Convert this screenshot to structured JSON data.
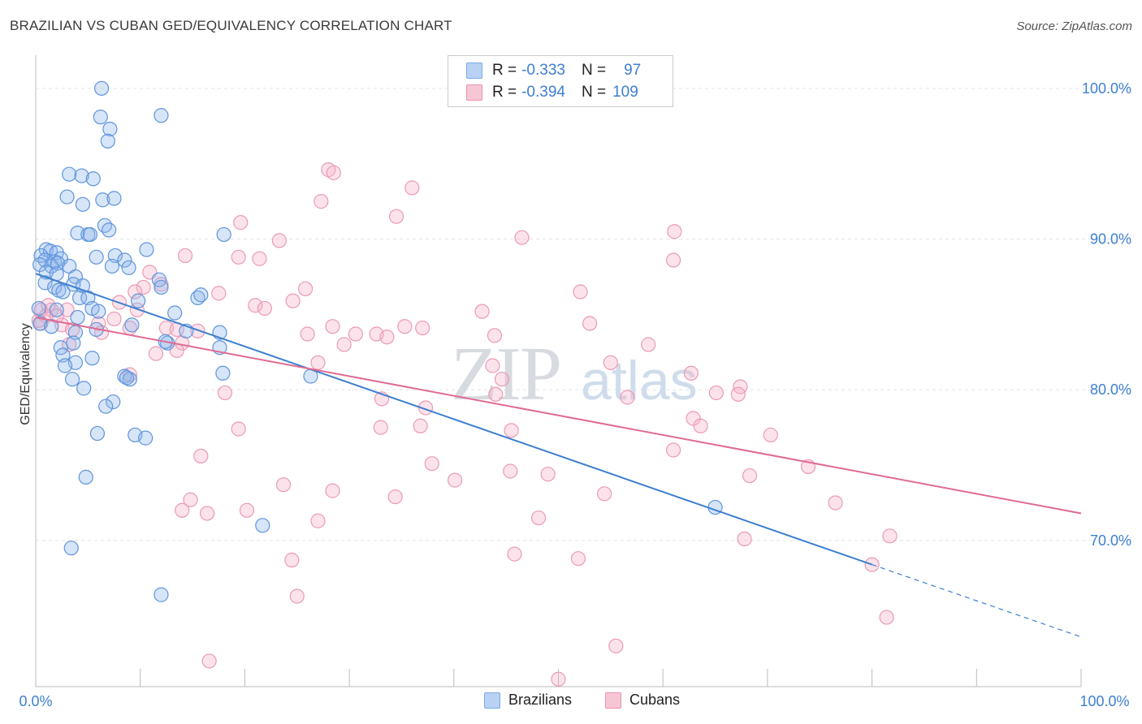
{
  "title": "BRAZILIAN VS CUBAN GED/EQUIVALENCY CORRELATION CHART",
  "source": "Source: ZipAtlas.com",
  "watermark": {
    "zip": "ZIP",
    "atlas": "atlas"
  },
  "legend": {
    "r_label": "R =",
    "n_label": "N =",
    "rows": [
      {
        "name": "Brazilians",
        "r": "-0.333",
        "n": "97",
        "color": "#7aaae8",
        "fill": "#b9d1f2"
      },
      {
        "name": "Cubans",
        "r": "-0.394",
        "n": "109",
        "color": "#e993ad",
        "fill": "#f7c6d4"
      }
    ]
  },
  "chart_data": {
    "type": "scatter",
    "title": "BRAZILIAN VS CUBAN GED/EQUIVALENCY CORRELATION CHART",
    "xlabel": "",
    "ylabel": "GED/Equivalency",
    "xlim": [
      0,
      100
    ],
    "ylim": [
      60.3,
      102.2
    ],
    "x_tick_labels": [
      "0.0%",
      "100.0%"
    ],
    "y_ticks": [
      70,
      80,
      90,
      100
    ],
    "y_tick_labels": [
      "70.0%",
      "80.0%",
      "90.0%",
      "100.0%"
    ],
    "grid": true,
    "legend_position": "top-center",
    "series": [
      {
        "name": "Brazilians",
        "color": "#3d7fd1",
        "trend": {
          "x0": 0,
          "y0": 87.7,
          "x1": 80,
          "y1": 68.4,
          "dashed_to_x": 100,
          "dashed_to_y": 63.6
        },
        "points": [
          [
            6.3,
            100.0
          ],
          [
            6.2,
            98.1
          ],
          [
            12.0,
            98.2
          ],
          [
            7.1,
            97.3
          ],
          [
            6.9,
            96.5
          ],
          [
            3.2,
            94.3
          ],
          [
            4.4,
            94.2
          ],
          [
            5.5,
            94.0
          ],
          [
            3.0,
            92.8
          ],
          [
            6.4,
            92.6
          ],
          [
            7.5,
            92.7
          ],
          [
            4.5,
            92.3
          ],
          [
            6.6,
            90.9
          ],
          [
            4.0,
            90.4
          ],
          [
            5.0,
            90.3
          ],
          [
            7.0,
            90.6
          ],
          [
            5.2,
            90.3
          ],
          [
            18.0,
            90.3
          ],
          [
            1.0,
            89.3
          ],
          [
            1.4,
            89.2
          ],
          [
            2.0,
            89.1
          ],
          [
            0.5,
            88.9
          ],
          [
            0.9,
            88.6
          ],
          [
            1.8,
            88.5
          ],
          [
            2.4,
            88.7
          ],
          [
            5.8,
            88.8
          ],
          [
            7.6,
            88.9
          ],
          [
            8.5,
            88.6
          ],
          [
            10.6,
            89.3
          ],
          [
            0.4,
            88.3
          ],
          [
            1.5,
            88.2
          ],
          [
            2.1,
            88.4
          ],
          [
            3.2,
            88.2
          ],
          [
            7.3,
            88.2
          ],
          [
            8.9,
            88.1
          ],
          [
            1.0,
            87.8
          ],
          [
            2.0,
            87.7
          ],
          [
            3.8,
            87.5
          ],
          [
            11.8,
            87.3
          ],
          [
            0.9,
            87.1
          ],
          [
            3.6,
            87.0
          ],
          [
            4.5,
            86.9
          ],
          [
            12.0,
            86.8
          ],
          [
            1.8,
            86.8
          ],
          [
            2.2,
            86.6
          ],
          [
            2.6,
            86.5
          ],
          [
            15.5,
            86.1
          ],
          [
            15.8,
            86.3
          ],
          [
            4.2,
            86.1
          ],
          [
            5.0,
            86.1
          ],
          [
            9.8,
            85.9
          ],
          [
            0.3,
            85.4
          ],
          [
            5.4,
            85.4
          ],
          [
            6.0,
            85.2
          ],
          [
            13.3,
            85.1
          ],
          [
            2.0,
            85.3
          ],
          [
            4.0,
            84.8
          ],
          [
            9.2,
            84.3
          ],
          [
            14.4,
            83.9
          ],
          [
            17.6,
            83.8
          ],
          [
            0.4,
            84.4
          ],
          [
            1.5,
            84.2
          ],
          [
            3.8,
            83.8
          ],
          [
            5.8,
            84.0
          ],
          [
            12.6,
            83.1
          ],
          [
            3.6,
            83.1
          ],
          [
            2.4,
            82.8
          ],
          [
            17.6,
            82.8
          ],
          [
            2.6,
            82.3
          ],
          [
            5.4,
            82.1
          ],
          [
            3.8,
            81.8
          ],
          [
            2.8,
            81.6
          ],
          [
            17.9,
            81.1
          ],
          [
            8.5,
            80.9
          ],
          [
            3.5,
            80.7
          ],
          [
            9.0,
            80.7
          ],
          [
            26.3,
            80.9
          ],
          [
            4.6,
            80.1
          ],
          [
            7.4,
            79.2
          ],
          [
            6.7,
            78.9
          ],
          [
            9.5,
            77.0
          ],
          [
            10.5,
            76.8
          ],
          [
            5.9,
            77.1
          ],
          [
            4.8,
            74.2
          ],
          [
            65.0,
            72.2
          ],
          [
            21.7,
            71.0
          ],
          [
            3.4,
            69.5
          ],
          [
            12.0,
            66.4
          ],
          [
            8.7,
            80.8
          ],
          [
            12.4,
            83.2
          ]
        ]
      },
      {
        "name": "Cubans",
        "color": "#e06a92",
        "trend": {
          "x0": 0,
          "y0": 84.8,
          "x1": 100,
          "y1": 71.8
        },
        "points": [
          [
            28.0,
            94.6
          ],
          [
            28.5,
            94.4
          ],
          [
            36.0,
            93.4
          ],
          [
            27.3,
            92.5
          ],
          [
            34.5,
            91.5
          ],
          [
            19.6,
            91.1
          ],
          [
            61.1,
            90.5
          ],
          [
            46.5,
            90.1
          ],
          [
            23.3,
            89.9
          ],
          [
            14.3,
            88.9
          ],
          [
            19.4,
            88.8
          ],
          [
            21.4,
            88.7
          ],
          [
            61.0,
            88.6
          ],
          [
            10.9,
            87.8
          ],
          [
            12.0,
            87.0
          ],
          [
            10.3,
            86.8
          ],
          [
            25.8,
            86.7
          ],
          [
            9.5,
            86.5
          ],
          [
            17.5,
            86.4
          ],
          [
            52.1,
            86.5
          ],
          [
            24.6,
            85.9
          ],
          [
            21.0,
            85.6
          ],
          [
            21.9,
            85.4
          ],
          [
            0.5,
            85.3
          ],
          [
            1.5,
            85.3
          ],
          [
            3.0,
            85.3
          ],
          [
            9.7,
            85.3
          ],
          [
            42.7,
            85.2
          ],
          [
            1.0,
            84.9
          ],
          [
            7.5,
            84.7
          ],
          [
            0.5,
            84.4
          ],
          [
            2.5,
            84.3
          ],
          [
            6.0,
            84.4
          ],
          [
            9.0,
            84.1
          ],
          [
            12.5,
            84.1
          ],
          [
            28.4,
            84.2
          ],
          [
            35.3,
            84.2
          ],
          [
            53.0,
            84.4
          ],
          [
            3.5,
            84.0
          ],
          [
            13.5,
            84.0
          ],
          [
            15.5,
            83.9
          ],
          [
            6.3,
            83.8
          ],
          [
            26.0,
            83.7
          ],
          [
            30.6,
            83.7
          ],
          [
            32.6,
            83.7
          ],
          [
            33.6,
            83.5
          ],
          [
            43.9,
            83.6
          ],
          [
            14.0,
            83.1
          ],
          [
            3.2,
            83.0
          ],
          [
            29.5,
            83.0
          ],
          [
            58.6,
            83.0
          ],
          [
            13.5,
            82.6
          ],
          [
            11.5,
            82.4
          ],
          [
            27.0,
            81.8
          ],
          [
            43.7,
            81.6
          ],
          [
            55.0,
            81.8
          ],
          [
            62.7,
            81.1
          ],
          [
            9.0,
            81.0
          ],
          [
            44.6,
            80.7
          ],
          [
            67.4,
            80.2
          ],
          [
            65.1,
            79.8
          ],
          [
            67.2,
            79.7
          ],
          [
            56.6,
            79.5
          ],
          [
            18.1,
            79.8
          ],
          [
            44.0,
            79.7
          ],
          [
            33.1,
            79.4
          ],
          [
            37.3,
            78.8
          ],
          [
            62.9,
            78.1
          ],
          [
            63.6,
            77.6
          ],
          [
            19.4,
            77.4
          ],
          [
            33.0,
            77.5
          ],
          [
            36.8,
            77.6
          ],
          [
            45.5,
            77.3
          ],
          [
            70.3,
            77.0
          ],
          [
            61.0,
            76.0
          ],
          [
            15.8,
            75.6
          ],
          [
            37.9,
            75.1
          ],
          [
            73.9,
            74.9
          ],
          [
            45.4,
            74.6
          ],
          [
            40.1,
            74.0
          ],
          [
            49.0,
            74.4
          ],
          [
            68.3,
            74.3
          ],
          [
            23.7,
            73.7
          ],
          [
            28.4,
            73.3
          ],
          [
            34.4,
            72.9
          ],
          [
            54.4,
            73.1
          ],
          [
            76.5,
            72.5
          ],
          [
            14.8,
            72.7
          ],
          [
            14.0,
            72.0
          ],
          [
            16.4,
            71.8
          ],
          [
            20.2,
            72.0
          ],
          [
            27.0,
            71.3
          ],
          [
            48.1,
            71.5
          ],
          [
            67.8,
            70.1
          ],
          [
            81.7,
            70.3
          ],
          [
            45.8,
            69.1
          ],
          [
            51.9,
            68.8
          ],
          [
            24.5,
            68.7
          ],
          [
            25.0,
            66.3
          ],
          [
            81.4,
            64.9
          ],
          [
            55.5,
            63.0
          ],
          [
            16.6,
            62.0
          ],
          [
            50.0,
            60.8
          ],
          [
            80.0,
            68.4
          ],
          [
            0.3,
            84.6
          ],
          [
            1.2,
            85.6
          ],
          [
            2.0,
            84.9
          ],
          [
            8.0,
            85.8
          ],
          [
            37.0,
            84.1
          ]
        ]
      }
    ]
  }
}
